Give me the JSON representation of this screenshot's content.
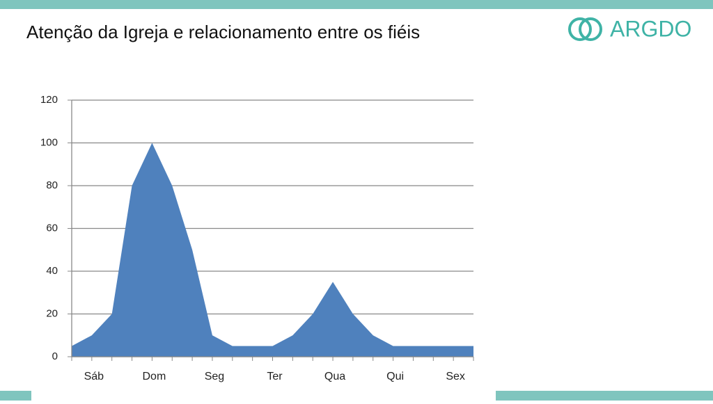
{
  "logo": "ARGDO",
  "chart_data": {
    "type": "area",
    "title": "Atenção da Igreja e relacionamento entre os fiéis",
    "categories": [
      null,
      "Sáb",
      null,
      null,
      "Dom",
      null,
      null,
      "Seg",
      null,
      null,
      "Ter",
      null,
      null,
      "Qua",
      null,
      null,
      "Qui",
      null,
      null,
      "Sex",
      null
    ],
    "values": [
      5,
      10,
      20,
      80,
      100,
      80,
      50,
      10,
      5,
      5,
      5,
      10,
      20,
      35,
      20,
      10,
      5,
      5,
      5,
      5,
      5
    ],
    "color": "#4f81bd",
    "ylim": [
      0,
      120
    ],
    "yticks": [
      0,
      20,
      40,
      60,
      80,
      100,
      120
    ],
    "grid": true
  }
}
